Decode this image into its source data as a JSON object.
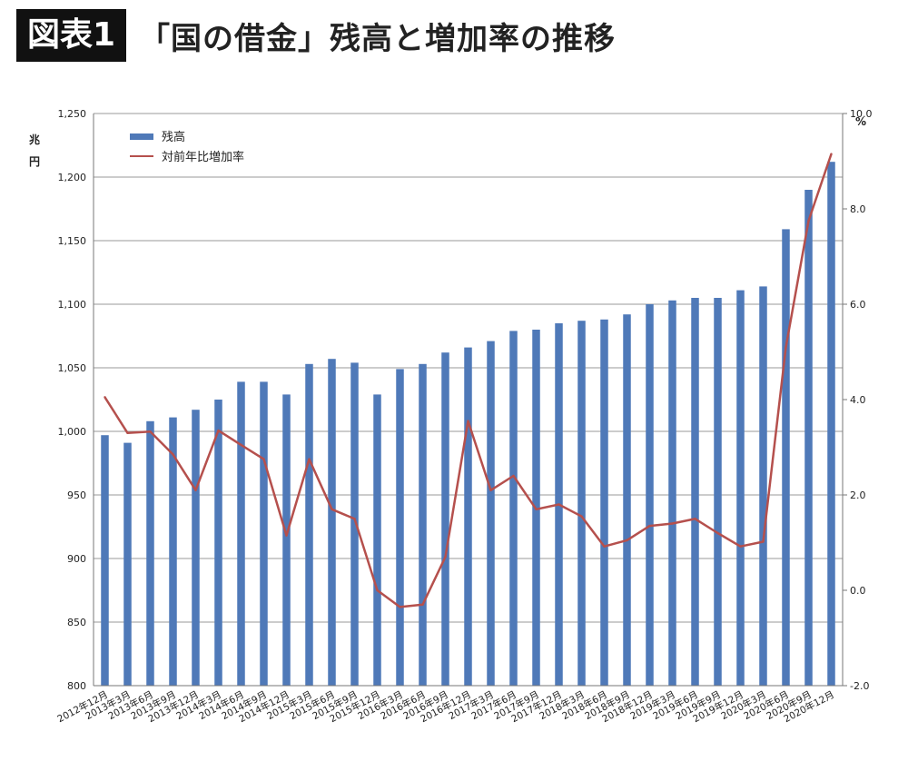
{
  "header": {
    "badge": "図表1",
    "title": "「国の借金」残高と増加率の推移"
  },
  "chart_data": {
    "type": "bar+line",
    "y_left_unit": "兆円",
    "y_right_unit": "%",
    "y_left_lim": [
      800,
      1250
    ],
    "y_left_ticks": [
      800,
      850,
      900,
      950,
      1000,
      1050,
      1100,
      1150,
      1200,
      1250
    ],
    "y_left_tick_labels": [
      "800",
      "850",
      "900",
      "950",
      "1,000",
      "1,050",
      "1,100",
      "1,150",
      "1,200",
      "1,250"
    ],
    "y_right_lim": [
      -2.0,
      10.0
    ],
    "y_right_ticks": [
      -2.0,
      0.0,
      2.0,
      4.0,
      6.0,
      8.0,
      10.0
    ],
    "y_right_tick_labels": [
      "-2.0",
      "0.0",
      "2.0",
      "4.0",
      "6.0",
      "8.0",
      "10.0"
    ],
    "grid": "horizontal",
    "legend_position": "top-left",
    "categories": [
      "2012年12月",
      "2013年3月",
      "2013年6月",
      "2013年9月",
      "2013年12月",
      "2014年3月",
      "2014年6月",
      "2014年9月",
      "2014年12月",
      "2015年3月",
      "2015年6月",
      "2015年9月",
      "2015年12月",
      "2016年3月",
      "2016年6月",
      "2016年9月",
      "2016年12月",
      "2017年3月",
      "2017年6月",
      "2017年9月",
      "2017年12月",
      "2018年3月",
      "2018年6月",
      "2018年9月",
      "2018年12月",
      "2019年3月",
      "2019年6月",
      "2019年9月",
      "2019年12月",
      "2020年3月",
      "2020年6月",
      "2020年9月",
      "2020年12月"
    ],
    "series": [
      {
        "name": "残高",
        "kind": "bar",
        "axis": "left",
        "color": "#4f79b8",
        "values": [
          997,
          991,
          1008,
          1011,
          1017,
          1025,
          1039,
          1039,
          1029,
          1053,
          1057,
          1054,
          1029,
          1049,
          1053,
          1062,
          1066,
          1071,
          1079,
          1080,
          1085,
          1087,
          1088,
          1092,
          1100,
          1103,
          1105,
          1105,
          1111,
          1114,
          1159,
          1190,
          1212
        ]
      },
      {
        "name": "対前年比増加率",
        "kind": "line",
        "axis": "right",
        "color": "#b5504d",
        "values": [
          4.05,
          3.3,
          3.33,
          2.85,
          2.1,
          3.35,
          3.05,
          2.75,
          1.15,
          2.75,
          1.7,
          1.5,
          0.0,
          -0.35,
          -0.3,
          0.7,
          3.55,
          2.1,
          2.4,
          1.7,
          1.8,
          1.55,
          0.92,
          1.05,
          1.35,
          1.4,
          1.5,
          1.2,
          0.92,
          1.02,
          5.1,
          7.75,
          9.15
        ]
      }
    ]
  }
}
